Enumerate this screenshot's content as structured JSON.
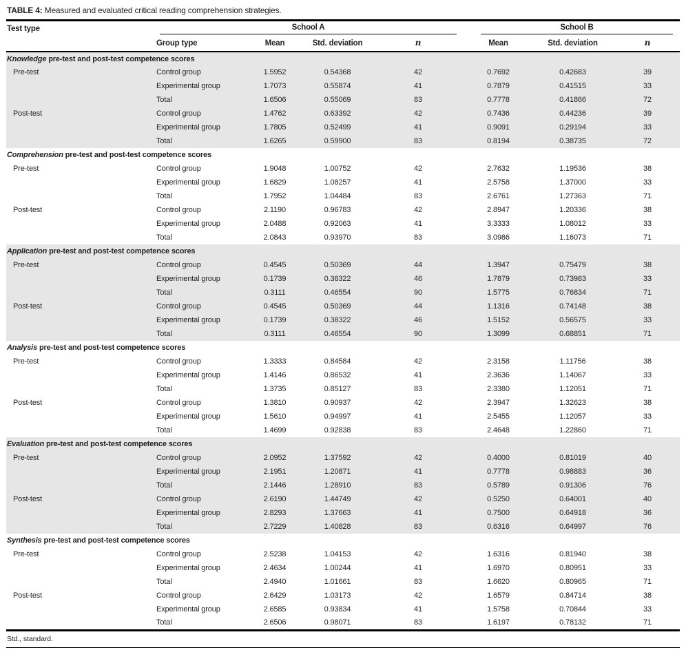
{
  "title": {
    "label": "TABLE 4:",
    "text": " Measured and evaluated critical reading comprehension strategies."
  },
  "header": {
    "test_type": "Test type",
    "group_type": "Group type",
    "school_a": "School A",
    "school_b": "School B",
    "mean": "Mean",
    "std": "Std. deviation",
    "n": "n"
  },
  "footnote": "Std., standard.",
  "colors": {
    "section_shading": "#e6e6e6",
    "rule": "#000000",
    "text": "#231f20"
  },
  "sections": [
    {
      "name": "Knowledge",
      "suffix": " pre-test and post-test competence scores",
      "shaded": true,
      "rows": [
        {
          "test": "Pre-test",
          "group": "Control group",
          "a": [
            "1.5952",
            "0.54368",
            "42"
          ],
          "b": [
            "0.7692",
            "0.42683",
            "39"
          ]
        },
        {
          "test": "",
          "group": "Experimental group",
          "a": [
            "1.7073",
            "0.55874",
            "41"
          ],
          "b": [
            "0.7879",
            "0.41515",
            "33"
          ]
        },
        {
          "test": "",
          "group": "Total",
          "a": [
            "1.6506",
            "0.55069",
            "83"
          ],
          "b": [
            "0.7778",
            "0.41866",
            "72"
          ]
        },
        {
          "test": "Post-test",
          "group": "Control group",
          "a": [
            "1.4762",
            "0.63392",
            "42"
          ],
          "b": [
            "0.7436",
            "0.44236",
            "39"
          ]
        },
        {
          "test": "",
          "group": "Experimental group",
          "a": [
            "1.7805",
            "0.52499",
            "41"
          ],
          "b": [
            "0.9091",
            "0.29194",
            "33"
          ]
        },
        {
          "test": "",
          "group": "Total",
          "a": [
            "1.6265",
            "0.59900",
            "83"
          ],
          "b": [
            "0.8194",
            "0.38735",
            "72"
          ]
        }
      ]
    },
    {
      "name": "Comprehension",
      "suffix": " pre-test and post-test competence scores",
      "shaded": false,
      "rows": [
        {
          "test": "Pre-test",
          "group": "Control group",
          "a": [
            "1.9048",
            "1.00752",
            "42"
          ],
          "b": [
            "2.7632",
            "1.19536",
            "38"
          ]
        },
        {
          "test": "",
          "group": "Experimental group",
          "a": [
            "1.6829",
            "1.08257",
            "41"
          ],
          "b": [
            "2.5758",
            "1.37000",
            "33"
          ]
        },
        {
          "test": "",
          "group": "Total",
          "a": [
            "1.7952",
            "1.04484",
            "83"
          ],
          "b": [
            "2.6761",
            "1.27363",
            "71"
          ]
        },
        {
          "test": "Post-test",
          "group": "Control group",
          "a": [
            "2.1190",
            "0.96783",
            "42"
          ],
          "b": [
            "2.8947",
            "1.20336",
            "38"
          ]
        },
        {
          "test": "",
          "group": "Experimental group",
          "a": [
            "2.0488",
            "0.92063",
            "41"
          ],
          "b": [
            "3.3333",
            "1.08012",
            "33"
          ]
        },
        {
          "test": "",
          "group": "Total",
          "a": [
            "2.0843",
            "0.93970",
            "83"
          ],
          "b": [
            "3.0986",
            "1.16073",
            "71"
          ]
        }
      ]
    },
    {
      "name": "Application",
      "suffix": " pre-test and post-test competence scores",
      "shaded": true,
      "rows": [
        {
          "test": "Pre-test",
          "group": "Control group",
          "a": [
            "0.4545",
            "0.50369",
            "44"
          ],
          "b": [
            "1.3947",
            "0.75479",
            "38"
          ]
        },
        {
          "test": "",
          "group": "Experimental group",
          "a": [
            "0.1739",
            "0.38322",
            "46"
          ],
          "b": [
            "1.7879",
            "0.73983",
            "33"
          ]
        },
        {
          "test": "",
          "group": "Total",
          "a": [
            "0.3111",
            "0.46554",
            "90"
          ],
          "b": [
            "1.5775",
            "0.76834",
            "71"
          ]
        },
        {
          "test": "Post-test",
          "group": "Control group",
          "a": [
            "0.4545",
            "0.50369",
            "44"
          ],
          "b": [
            "1.1316",
            "0.74148",
            "38"
          ]
        },
        {
          "test": "",
          "group": "Experimental group",
          "a": [
            "0.1739",
            "0.38322",
            "46"
          ],
          "b": [
            "1.5152",
            "0.56575",
            "33"
          ]
        },
        {
          "test": "",
          "group": "Total",
          "a": [
            "0.3111",
            "0.46554",
            "90"
          ],
          "b": [
            "1.3099",
            "0.68851",
            "71"
          ]
        }
      ]
    },
    {
      "name": "Analysis",
      "suffix": " pre-test and post-test competence scores",
      "shaded": false,
      "rows": [
        {
          "test": "Pre-test",
          "group": "Control group",
          "a": [
            "1.3333",
            "0.84584",
            "42"
          ],
          "b": [
            "2.3158",
            "1.11756",
            "38"
          ]
        },
        {
          "test": "",
          "group": "Experimental group",
          "a": [
            "1.4146",
            "0.86532",
            "41"
          ],
          "b": [
            "2.3636",
            "1.14067",
            "33"
          ]
        },
        {
          "test": "",
          "group": "Total",
          "a": [
            "1.3735",
            "0.85127",
            "83"
          ],
          "b": [
            "2.3380",
            "1.12051",
            "71"
          ]
        },
        {
          "test": "Post-test",
          "group": "Control group",
          "a": [
            "1.3810",
            "0.90937",
            "42"
          ],
          "b": [
            "2.3947",
            "1.32623",
            "38"
          ]
        },
        {
          "test": "",
          "group": "Experimental group",
          "a": [
            "1.5610",
            "0.94997",
            "41"
          ],
          "b": [
            "2.5455",
            "1.12057",
            "33"
          ]
        },
        {
          "test": "",
          "group": "Total",
          "a": [
            "1.4699",
            "0.92838",
            "83"
          ],
          "b": [
            "2.4648",
            "1.22860",
            "71"
          ]
        }
      ]
    },
    {
      "name": "Evaluation",
      "suffix": " pre-test and post-test competence scores",
      "shaded": true,
      "rows": [
        {
          "test": "Pre-test",
          "group": "Control group",
          "a": [
            "2.0952",
            "1.37592",
            "42"
          ],
          "b": [
            "0.4000",
            "0.81019",
            "40"
          ]
        },
        {
          "test": "",
          "group": "Experimental group",
          "a": [
            "2.1951",
            "1.20871",
            "41"
          ],
          "b": [
            "0.7778",
            "0.98883",
            "36"
          ]
        },
        {
          "test": "",
          "group": "Total",
          "a": [
            "2.1446",
            "1.28910",
            "83"
          ],
          "b": [
            "0.5789",
            "0.91306",
            "76"
          ]
        },
        {
          "test": "Post-test",
          "group": "Control group",
          "a": [
            "2.6190",
            "1.44749",
            "42"
          ],
          "b": [
            "0.5250",
            "0.64001",
            "40"
          ]
        },
        {
          "test": "",
          "group": "Experimental group",
          "a": [
            "2.8293",
            "1.37663",
            "41"
          ],
          "b": [
            "0.7500",
            "0.64918",
            "36"
          ]
        },
        {
          "test": "",
          "group": "Total",
          "a": [
            "2.7229",
            "1.40828",
            "83"
          ],
          "b": [
            "0.6316",
            "0.64997",
            "76"
          ]
        }
      ]
    },
    {
      "name": "Synthesis",
      "suffix": " pre-test and post-test competence scores",
      "shaded": false,
      "rows": [
        {
          "test": "Pre-test",
          "group": "Control group",
          "a": [
            "2.5238",
            "1.04153",
            "42"
          ],
          "b": [
            "1.6316",
            "0.81940",
            "38"
          ]
        },
        {
          "test": "",
          "group": "Experimental group",
          "a": [
            "2.4634",
            "1.00244",
            "41"
          ],
          "b": [
            "1.6970",
            "0.80951",
            "33"
          ]
        },
        {
          "test": "",
          "group": "Total",
          "a": [
            "2.4940",
            "1.01661",
            "83"
          ],
          "b": [
            "1.6620",
            "0.80965",
            "71"
          ]
        },
        {
          "test": "Post-test",
          "group": "Control group",
          "a": [
            "2.6429",
            "1.03173",
            "42"
          ],
          "b": [
            "1.6579",
            "0.84714",
            "38"
          ]
        },
        {
          "test": "",
          "group": "Experimental group",
          "a": [
            "2.6585",
            "0.93834",
            "41"
          ],
          "b": [
            "1.5758",
            "0.70844",
            "33"
          ]
        },
        {
          "test": "",
          "group": "Total",
          "a": [
            "2.6506",
            "0.98071",
            "83"
          ],
          "b": [
            "1.6197",
            "0.78132",
            "71"
          ]
        }
      ]
    }
  ]
}
